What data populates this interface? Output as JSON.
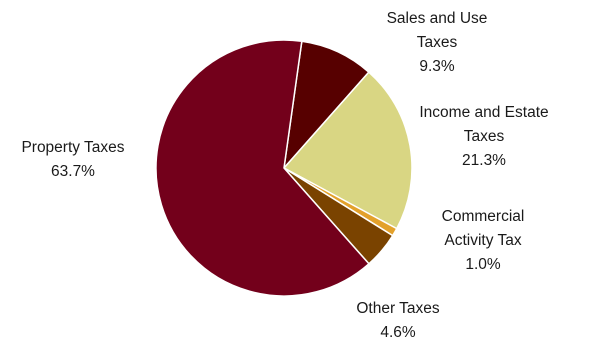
{
  "chart_data": {
    "type": "pie",
    "title": "",
    "slices": [
      {
        "label_lines": [
          "Sales and Use",
          "Taxes"
        ],
        "value": 9.3,
        "value_text": "9.3%",
        "color": "#570000"
      },
      {
        "label_lines": [
          "Income and Estate",
          "Taxes"
        ],
        "value": 21.3,
        "value_text": "21.3%",
        "color": "#d9d683"
      },
      {
        "label_lines": [
          "Commercial",
          "Activity Tax"
        ],
        "value": 1.0,
        "value_text": "1.0%",
        "color": "#e3a12b"
      },
      {
        "label_lines": [
          "Other Taxes"
        ],
        "value": 4.6,
        "value_text": "4.6%",
        "color": "#7a4300"
      },
      {
        "label_lines": [
          "Property Taxes"
        ],
        "value": 63.7,
        "value_text": "63.7%",
        "color": "#73001b"
      }
    ],
    "start_angle_deg": 8,
    "direction": "clockwise",
    "slice_border_color": "#ffffff"
  }
}
